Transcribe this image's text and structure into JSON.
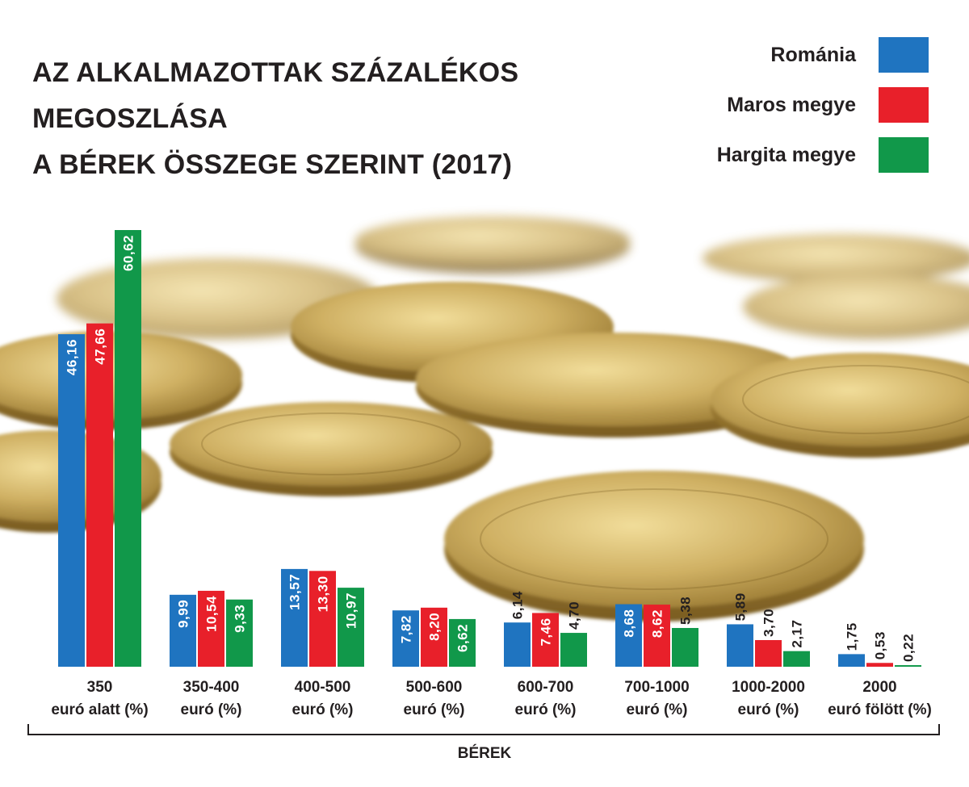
{
  "title_lines": [
    "AZ ALKALMAZOTTAK SZÁZALÉKOS MEGOSZLÁSA",
    "A BÉREK ÖSSZEGE SZERINT (2017)"
  ],
  "legend": [
    {
      "label": "Románia",
      "color": "#1f74c0"
    },
    {
      "label": "Maros megye",
      "color": "#e8202a"
    },
    {
      "label": "Hargita megye",
      "color": "#11984a"
    }
  ],
  "chart_data": {
    "type": "bar",
    "title": "AZ ALKALMAZOTTAK SZÁZALÉKOS MEGOSZLÁSA A BÉREK ÖSSZEGE SZERINT (2017)",
    "xlabel": "BÉREK",
    "ylabel": "",
    "categories": [
      [
        "350",
        "euró alatt (%)"
      ],
      [
        "350-400",
        "euró (%)"
      ],
      [
        "400-500",
        "euró (%)"
      ],
      [
        "500-600",
        "euró (%)"
      ],
      [
        "600-700",
        "euró (%)"
      ],
      [
        "700-1000",
        "euró (%)"
      ],
      [
        "1000-2000",
        "euró (%)"
      ],
      [
        "2000",
        "euró fölött (%)"
      ]
    ],
    "series": [
      {
        "name": "Románia",
        "values": [
          46.16,
          9.99,
          13.57,
          7.82,
          6.14,
          8.68,
          5.89,
          1.75
        ],
        "labels": [
          "46,16",
          "9,99",
          "13,57",
          "7,82",
          "6,14",
          "8,68",
          "5,89",
          "1,75"
        ]
      },
      {
        "name": "Maros megye",
        "values": [
          47.66,
          10.54,
          13.3,
          8.2,
          7.46,
          8.62,
          3.7,
          0.53
        ],
        "labels": [
          "47,66",
          "10,54",
          "13,30",
          "8,20",
          "7,46",
          "8,62",
          "3,70",
          "0,53"
        ]
      },
      {
        "name": "Hargita megye",
        "values": [
          60.62,
          9.33,
          10.97,
          6.62,
          4.7,
          5.38,
          2.17,
          0.22
        ],
        "labels": [
          "60,62",
          "9,33",
          "10,97",
          "6,62",
          "4,70",
          "5,38",
          "2,17",
          "0,22"
        ]
      }
    ],
    "colors": [
      "#1f74c0",
      "#e8202a",
      "#11984a"
    ],
    "ylim": [
      0,
      60.62
    ],
    "grid": false,
    "legend_position": "top-right"
  }
}
